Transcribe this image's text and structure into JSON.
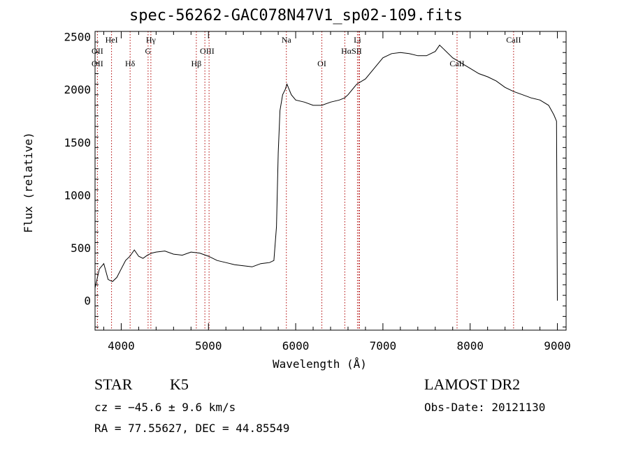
{
  "chart_data": {
    "type": "line",
    "title": "spec-56262-GAC078N47V1_sp02-109.fits",
    "xlabel": "Wavelength (Å)",
    "ylabel": "Flux (relative)",
    "xlim": [
      3700,
      9100
    ],
    "ylim": [
      -280,
      2550
    ],
    "xticks": [
      4000,
      5000,
      6000,
      7000,
      8000,
      9000
    ],
    "yticks": [
      0,
      500,
      1000,
      1500,
      2000,
      2500
    ],
    "grid": false,
    "series": [
      {
        "color": "#000000",
        "x": [
          3700,
          3750,
          3800,
          3850,
          3900,
          3950,
          4000,
          4050,
          4100,
          4150,
          4200,
          4250,
          4300,
          4350,
          4400,
          4500,
          4600,
          4700,
          4800,
          4900,
          5000,
          5100,
          5200,
          5300,
          5400,
          5500,
          5600,
          5700,
          5750,
          5780,
          5800,
          5820,
          5850,
          5880,
          5900,
          5950,
          6000,
          6100,
          6200,
          6300,
          6400,
          6500,
          6560,
          6600,
          6700,
          6800,
          6900,
          7000,
          7100,
          7200,
          7300,
          7400,
          7500,
          7600,
          7650,
          7700,
          7800,
          7900,
          8000,
          8100,
          8200,
          8300,
          8400,
          8500,
          8600,
          8700,
          8800,
          8900,
          8960,
          8990,
          9000
        ],
        "y": [
          120,
          300,
          350,
          200,
          180,
          220,
          300,
          380,
          420,
          480,
          420,
          400,
          430,
          450,
          460,
          470,
          440,
          430,
          460,
          450,
          420,
          380,
          360,
          340,
          330,
          320,
          350,
          360,
          380,
          700,
          1400,
          1800,
          1950,
          2000,
          2050,
          1950,
          1900,
          1880,
          1850,
          1850,
          1880,
          1900,
          1920,
          1950,
          2050,
          2100,
          2200,
          2300,
          2340,
          2350,
          2340,
          2320,
          2320,
          2360,
          2420,
          2380,
          2300,
          2250,
          2200,
          2150,
          2120,
          2080,
          2020,
          1980,
          1950,
          1920,
          1900,
          1850,
          1760,
          1700,
          0
        ]
      }
    ],
    "lines": [
      {
        "name": "OII",
        "x": 3727
      },
      {
        "name": "HeI",
        "x": 3889
      },
      {
        "name": "Hδ",
        "x": 4102
      },
      {
        "name": "Hγ",
        "x": 4340
      },
      {
        "name": "G",
        "x": 4308
      },
      {
        "name": "Hβ",
        "x": 4861
      },
      {
        "name": "OIII",
        "x": 4959
      },
      {
        "name": "OIII",
        "x": 5007
      },
      {
        "name": "Na",
        "x": 5893
      },
      {
        "name": "OI",
        "x": 6300
      },
      {
        "name": "Hα",
        "x": 6563
      },
      {
        "name": "Li",
        "x": 6708
      },
      {
        "name": "SII",
        "x": 6724
      },
      {
        "name": "SII",
        "x": 6731
      },
      {
        "name": "CaII",
        "x": 7850
      },
      {
        "name": "CaII",
        "x": 8498
      }
    ],
    "line_labels": [
      {
        "text": "OII",
        "x": 3727,
        "row": 2
      },
      {
        "text": "OII",
        "x": 3727,
        "row": 3
      },
      {
        "text": "HeI",
        "x": 3889,
        "row": 1
      },
      {
        "text": "Hδ",
        "x": 4102,
        "row": 3
      },
      {
        "text": "Hγ",
        "x": 4340,
        "row": 1
      },
      {
        "text": "G",
        "x": 4308,
        "row": 2
      },
      {
        "text": "Hβ",
        "x": 4861,
        "row": 3
      },
      {
        "text": "OIII",
        "x": 4985,
        "row": 2
      },
      {
        "text": "Na",
        "x": 5893,
        "row": 1
      },
      {
        "text": "OI",
        "x": 6300,
        "row": 3
      },
      {
        "text": "HαSII",
        "x": 6640,
        "row": 2
      },
      {
        "text": "Li",
        "x": 6708,
        "row": 1
      },
      {
        "text": "CaII",
        "x": 7850,
        "row": 3
      },
      {
        "text": "CaII",
        "x": 8498,
        "row": 1
      }
    ]
  },
  "info": {
    "class": "STAR",
    "subclass": "K5",
    "cz": "cz = −45.6 ± 9.6 km/s",
    "coords": "RA =  77.55627, DEC =  44.85549",
    "survey": "LAMOST DR2",
    "obs_date": "Obs-Date: 20121130"
  }
}
